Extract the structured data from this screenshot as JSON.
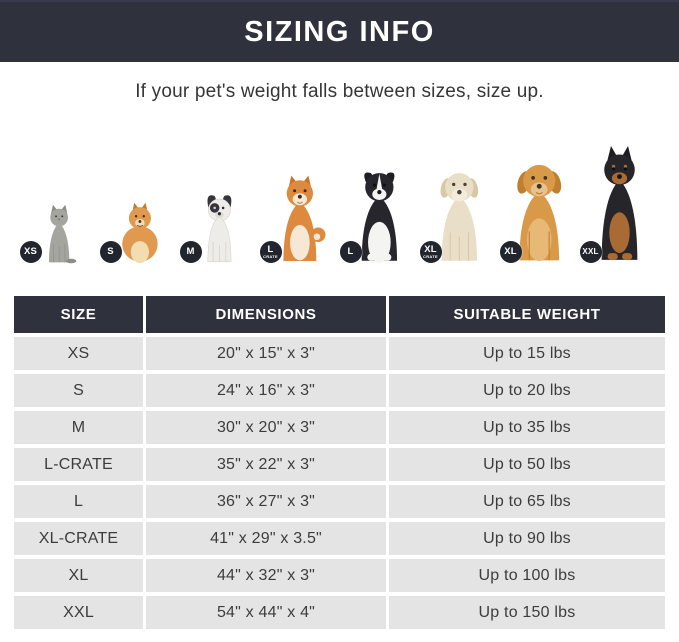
{
  "header": {
    "title": "SIZING INFO"
  },
  "subtitle": "If your pet's weight falls between sizes, size up.",
  "colors": {
    "banner_bg": "#2f323d",
    "badge_bg": "#23252e",
    "row_bg": "#e4e4e4",
    "header_text": "#ffffff",
    "body_text": "#3c3c3c"
  },
  "pets": [
    {
      "name": "cat",
      "badge": "XS",
      "badge_sub": ""
    },
    {
      "name": "pomeranian",
      "badge": "S",
      "badge_sub": ""
    },
    {
      "name": "french-bulldog",
      "badge": "M",
      "badge_sub": ""
    },
    {
      "name": "shiba-inu",
      "badge": "L",
      "badge_sub": "CRATE"
    },
    {
      "name": "border-collie",
      "badge": "L",
      "badge_sub": ""
    },
    {
      "name": "labrador",
      "badge": "XL",
      "badge_sub": "CRATE"
    },
    {
      "name": "golden-retriever",
      "badge": "XL",
      "badge_sub": ""
    },
    {
      "name": "doberman",
      "badge": "XXL",
      "badge_sub": ""
    }
  ],
  "table": {
    "columns": [
      "SIZE",
      "DIMENSIONS",
      "SUITABLE WEIGHT"
    ],
    "rows": [
      [
        "XS",
        "20\" x 15\" x 3\"",
        "Up to 15 lbs"
      ],
      [
        "S",
        "24\" x 16\" x 3\"",
        "Up to 20 lbs"
      ],
      [
        "M",
        "30\" x 20\" x 3\"",
        "Up to 35 lbs"
      ],
      [
        "L-CRATE",
        "35\" x 22\" x 3\"",
        "Up to 50 lbs"
      ],
      [
        "L",
        "36\" x 27\" x 3\"",
        "Up to 65 lbs"
      ],
      [
        "XL-CRATE",
        "41\" x 29\" x 3.5\"",
        "Up to 90 lbs"
      ],
      [
        "XL",
        "44\" x 32\" x 3\"",
        "Up to 100 lbs"
      ],
      [
        "XXL",
        "54\" x 44\" x 4\"",
        "Up to 150 lbs"
      ]
    ]
  }
}
